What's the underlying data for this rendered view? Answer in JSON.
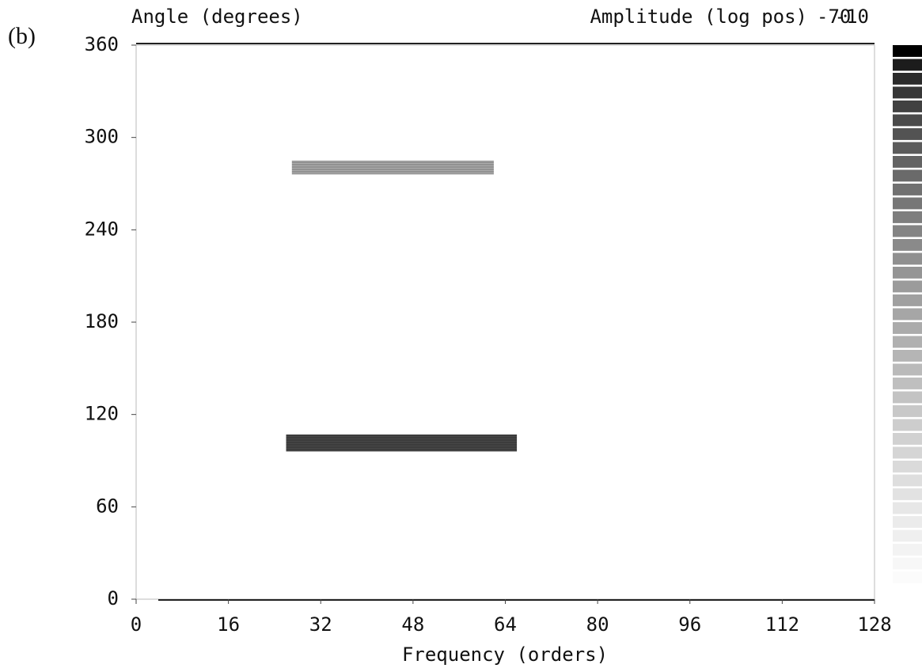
{
  "panel_label": "(b)",
  "chart_data": {
    "type": "heatmap",
    "ylabel": "Angle (degrees)",
    "xlabel": "Frequency (orders)",
    "colorbar_label": "Amplitude (log pos)",
    "clim": [
      -70,
      -10
    ],
    "xlim": [
      0,
      128
    ],
    "ylim": [
      0,
      360
    ],
    "xticks": [
      0,
      16,
      32,
      48,
      64,
      80,
      96,
      112,
      128
    ],
    "yticks": [
      0,
      60,
      120,
      180,
      240,
      300,
      360
    ],
    "regions": [
      {
        "x": [
          26,
          66
        ],
        "y": [
          96,
          107
        ],
        "level": -22
      },
      {
        "x": [
          27,
          62
        ],
        "y": [
          276,
          285
        ],
        "level": -48
      }
    ]
  }
}
